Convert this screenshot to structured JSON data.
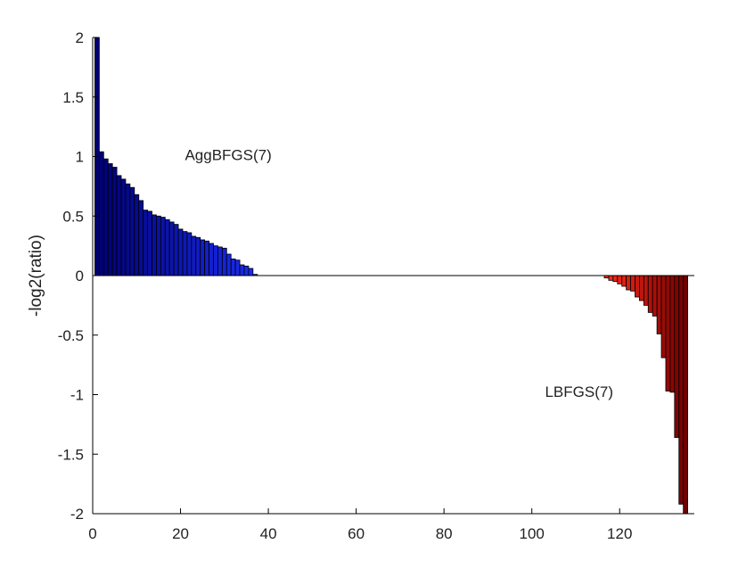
{
  "chart_data": {
    "type": "bar",
    "title": "",
    "xlabel": "",
    "ylabel": "-log2(ratio)",
    "xlim": [
      0,
      137
    ],
    "ylim": [
      -2,
      2
    ],
    "xticks": [
      0,
      20,
      40,
      60,
      80,
      100,
      120
    ],
    "yticks": [
      2,
      1.5,
      1,
      0.5,
      0,
      -0.5,
      -1,
      -1.5,
      -2
    ],
    "ytick_labels": [
      "2",
      "1.5",
      "1",
      "0.5",
      "0",
      "-0.5",
      "-1",
      "-1.5",
      "-2"
    ],
    "grid": false,
    "annotations": [
      {
        "text": "AggBFGS(7)",
        "x": 21,
        "y": 0.97
      },
      {
        "text": "LBFGS(7)",
        "x": 103,
        "y": -1.02
      }
    ],
    "series": [
      {
        "color_start": "#000070",
        "color_end": "#1a2cf0",
        "x_start": 1,
        "values": [
          2.0,
          1.04,
          0.98,
          0.94,
          0.91,
          0.84,
          0.81,
          0.77,
          0.74,
          0.68,
          0.63,
          0.55,
          0.54,
          0.51,
          0.5,
          0.49,
          0.47,
          0.45,
          0.43,
          0.39,
          0.37,
          0.36,
          0.33,
          0.32,
          0.3,
          0.29,
          0.27,
          0.25,
          0.24,
          0.23,
          0.18,
          0.14,
          0.13,
          0.09,
          0.08,
          0.06,
          0.01
        ]
      },
      {
        "color_start": "#ff2a1a",
        "color_end": "#700000",
        "x_start": 117,
        "values": [
          -0.02,
          -0.04,
          -0.05,
          -0.07,
          -0.09,
          -0.12,
          -0.13,
          -0.18,
          -0.21,
          -0.25,
          -0.31,
          -0.34,
          -0.49,
          -0.69,
          -0.97,
          -0.98,
          -1.36,
          -1.92,
          -2.0
        ]
      }
    ]
  }
}
